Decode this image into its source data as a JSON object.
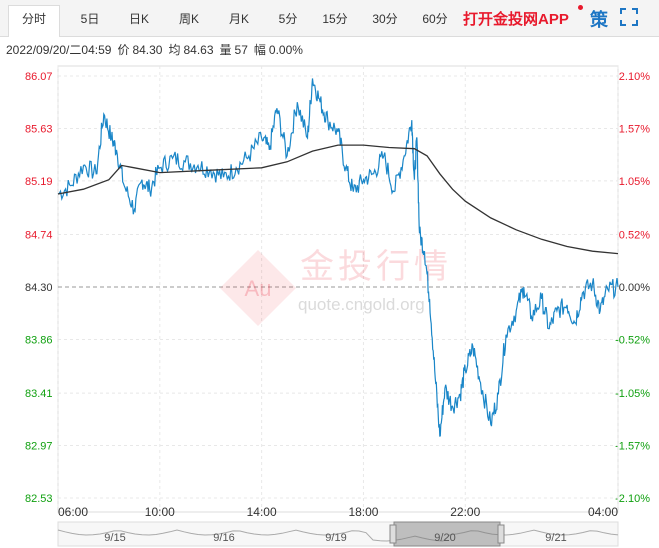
{
  "tabs": [
    {
      "label": "分时",
      "active": true
    },
    {
      "label": "5日",
      "active": false
    },
    {
      "label": "日K",
      "active": false
    },
    {
      "label": "周K",
      "active": false
    },
    {
      "label": "月K",
      "active": false
    },
    {
      "label": "5分",
      "active": false
    },
    {
      "label": "15分",
      "active": false
    },
    {
      "label": "30分",
      "active": false
    },
    {
      "label": "60分",
      "active": false
    }
  ],
  "app_promo": "打开金投网APP",
  "strategy_label": "策",
  "info": {
    "datetime": "2022/09/20/二04:59",
    "price_label": "价",
    "price": "84.30",
    "avg_label": "均",
    "avg": "84.63",
    "volume_label": "量",
    "volume": "57",
    "change_label": "幅",
    "change": "0.00%"
  },
  "watermark": {
    "text": "金投行情",
    "url": "quote.cngold.org",
    "logo": "Au"
  },
  "colors": {
    "up": "#e8192c",
    "down": "#10a010",
    "line": "#1a86c8",
    "avg": "#333333",
    "grid": "#e8e8e8",
    "base": "#999999"
  },
  "chart_data": {
    "type": "line",
    "y_ticks": [
      "86.07",
      "85.63",
      "85.19",
      "84.74",
      "84.30",
      "83.86",
      "83.41",
      "82.97",
      "82.53"
    ],
    "pct_ticks": [
      "2.10%",
      "1.57%",
      "1.05%",
      "0.52%",
      "0.00%",
      "-0.52%",
      "-1.05%",
      "-1.57%",
      "-2.10%"
    ],
    "x_ticks": [
      "06:00",
      "10:00",
      "14:00",
      "18:00",
      "22:00",
      "04:00"
    ],
    "ylim": [
      82.53,
      86.07
    ],
    "base_price": 84.3,
    "x_range_hours": [
      6,
      28
    ],
    "series": [
      {
        "name": "price",
        "x": [
          6.0,
          6.5,
          7.0,
          7.5,
          7.8,
          8.1,
          8.3,
          8.6,
          9.0,
          9.3,
          9.6,
          10.0,
          10.5,
          11.0,
          11.5,
          12.0,
          12.5,
          13.0,
          13.5,
          14.0,
          14.3,
          14.6,
          15.0,
          15.4,
          15.8,
          16.0,
          16.3,
          16.6,
          17.0,
          17.3,
          17.6,
          18.0,
          18.4,
          18.8,
          19.2,
          19.6,
          19.9,
          20.0,
          20.1,
          20.2,
          20.4,
          20.6,
          20.8,
          21.0,
          21.2,
          21.5,
          21.8,
          22.0,
          22.3,
          22.6,
          23.0,
          23.3,
          23.6,
          24.0,
          24.3,
          24.6,
          25.0,
          25.3,
          25.6,
          26.0,
          26.3,
          26.6,
          27.0,
          27.3,
          27.6,
          28.0
        ],
        "y": [
          85.08,
          85.15,
          85.32,
          85.25,
          85.75,
          85.55,
          85.45,
          85.15,
          84.95,
          85.2,
          85.12,
          85.3,
          85.38,
          85.35,
          85.32,
          85.28,
          85.22,
          85.3,
          85.4,
          85.55,
          85.45,
          85.8,
          85.4,
          85.85,
          85.55,
          86.05,
          85.85,
          85.7,
          85.6,
          85.3,
          85.1,
          85.2,
          85.25,
          85.4,
          85.1,
          85.4,
          85.7,
          85.2,
          85.55,
          84.75,
          84.6,
          84.2,
          83.6,
          83.05,
          83.45,
          83.3,
          83.4,
          83.6,
          83.8,
          83.5,
          83.15,
          83.4,
          83.9,
          84.1,
          84.3,
          84.05,
          84.2,
          83.95,
          84.1,
          84.15,
          84.0,
          84.25,
          84.33,
          84.1,
          84.28,
          84.3
        ]
      },
      {
        "name": "average",
        "x": [
          6.0,
          7.0,
          8.0,
          8.5,
          9.0,
          10.0,
          12.0,
          14.0,
          15.0,
          16.0,
          17.0,
          18.0,
          19.0,
          20.0,
          20.5,
          21.0,
          21.5,
          22.0,
          23.0,
          24.0,
          25.0,
          26.0,
          27.0,
          28.0
        ],
        "y": [
          85.08,
          85.12,
          85.2,
          85.32,
          85.3,
          85.26,
          85.28,
          85.3,
          85.35,
          85.44,
          85.49,
          85.49,
          85.47,
          85.46,
          85.4,
          85.25,
          85.12,
          85.02,
          84.88,
          84.78,
          84.7,
          84.64,
          84.6,
          84.58
        ]
      }
    ],
    "nav_dates": [
      "9/15",
      "9/16",
      "9/19",
      "9/20",
      "9/21"
    ]
  }
}
